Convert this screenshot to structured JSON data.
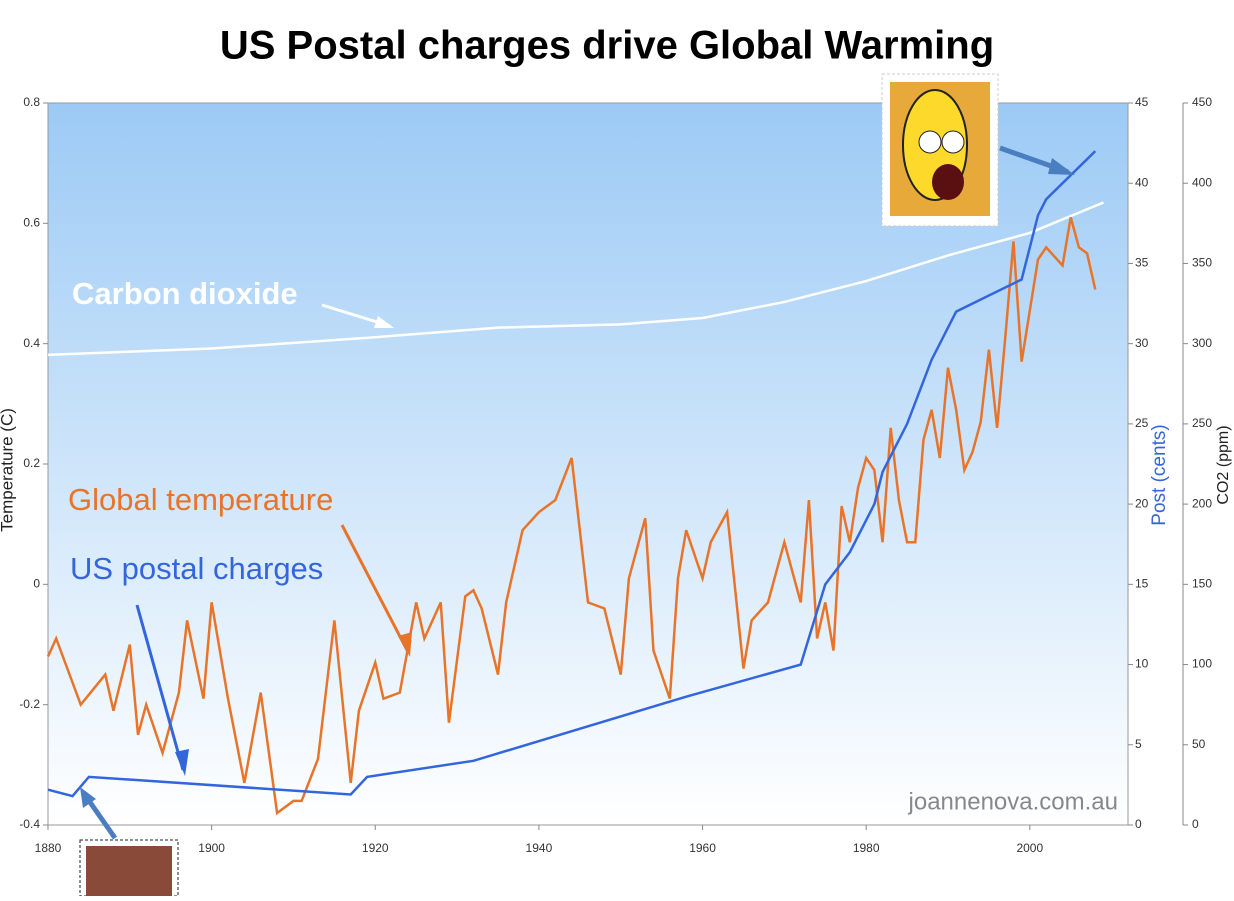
{
  "chart_data": {
    "type": "line",
    "title": "US Postal charges drive Global Warming",
    "ylabel": "Temperature (C)",
    "y2label": "Post (cents)",
    "y3label": "CO2 (ppm)",
    "watermark": "joannenova.com.au",
    "xlim": [
      1880,
      2012
    ],
    "xticks": [
      1880,
      1900,
      1920,
      1940,
      1960,
      1980,
      2000
    ],
    "ylim": [
      -0.4,
      0.8
    ],
    "yticks": [
      0.8,
      0.6,
      0.4,
      0.2,
      0,
      -0.2,
      -0.4
    ],
    "y2lim": [
      0,
      45
    ],
    "y2ticks": [
      45,
      40,
      35,
      30,
      25,
      20,
      15,
      10,
      5,
      0
    ],
    "y3lim": [
      0,
      450
    ],
    "y3ticks": [
      450,
      400,
      350,
      300,
      250,
      200,
      150,
      100,
      50,
      0
    ],
    "series": [
      {
        "name": "Carbon dioxide",
        "color": "#ffffff",
        "axis": "y3",
        "x": [
          1880,
          1900,
          1920,
          1935,
          1950,
          1960,
          1970,
          1980,
          1990,
          2000,
          2009
        ],
        "values": [
          293,
          297,
          304,
          310,
          312,
          316,
          326,
          339,
          355,
          369,
          388
        ]
      },
      {
        "name": "Global temperature",
        "color": "#e8742a",
        "axis": "y",
        "x": [
          1880,
          1881,
          1884,
          1887,
          1888,
          1890,
          1891,
          1892,
          1894,
          1896,
          1897,
          1899,
          1900,
          1902,
          1904,
          1906,
          1908,
          1910,
          1911,
          1913,
          1915,
          1917,
          1918,
          1920,
          1921,
          1923,
          1925,
          1926,
          1928,
          1929,
          1931,
          1932,
          1933,
          1935,
          1936,
          1938,
          1940,
          1942,
          1944,
          1946,
          1948,
          1950,
          1951,
          1953,
          1954,
          1956,
          1957,
          1958,
          1960,
          1961,
          1963,
          1965,
          1966,
          1968,
          1970,
          1971,
          1972,
          1973,
          1974,
          1975,
          1976,
          1977,
          1978,
          1979,
          1980,
          1981,
          1982,
          1983,
          1984,
          1985,
          1986,
          1987,
          1988,
          1989,
          1990,
          1991,
          1992,
          1993,
          1994,
          1995,
          1996,
          1997,
          1998,
          1999,
          2001,
          2002,
          2004,
          2005,
          2006,
          2007,
          2008
        ],
        "values": [
          -0.12,
          -0.09,
          -0.2,
          -0.15,
          -0.21,
          -0.1,
          -0.25,
          -0.2,
          -0.28,
          -0.18,
          -0.06,
          -0.19,
          -0.03,
          -0.19,
          -0.33,
          -0.18,
          -0.38,
          -0.36,
          -0.36,
          -0.29,
          -0.06,
          -0.33,
          -0.21,
          -0.13,
          -0.19,
          -0.18,
          -0.03,
          -0.09,
          -0.03,
          -0.23,
          -0.02,
          -0.01,
          -0.04,
          -0.15,
          -0.03,
          0.09,
          0.12,
          0.14,
          0.21,
          -0.03,
          -0.04,
          -0.15,
          0.01,
          0.11,
          -0.11,
          -0.19,
          0.01,
          0.09,
          0.01,
          0.07,
          0.12,
          -0.14,
          -0.06,
          -0.03,
          0.07,
          0.02,
          -0.03,
          0.14,
          -0.09,
          -0.03,
          -0.11,
          0.13,
          0.07,
          0.16,
          0.21,
          0.19,
          0.07,
          0.26,
          0.14,
          0.07,
          0.07,
          0.24,
          0.29,
          0.21,
          0.36,
          0.29,
          0.19,
          0.22,
          0.27,
          0.39,
          0.26,
          0.41,
          0.57,
          0.37,
          0.54,
          0.56,
          0.53,
          0.61,
          0.56,
          0.55,
          0.49
        ]
      },
      {
        "name": "US postal charges",
        "color": "#3366dd",
        "axis": "y2",
        "x": [
          1880,
          1883,
          1885,
          1917,
          1919,
          1932,
          1958,
          1972,
          1975,
          1978,
          1981,
          1982,
          1985,
          1988,
          1991,
          1995,
          1999,
          2001,
          2002,
          2006,
          2008
        ],
        "values": [
          2.2,
          1.8,
          3,
          1.9,
          3,
          4,
          8,
          10,
          15,
          17,
          20,
          22,
          25,
          29,
          32,
          33,
          34,
          38,
          39,
          41,
          42
        ]
      }
    ]
  }
}
